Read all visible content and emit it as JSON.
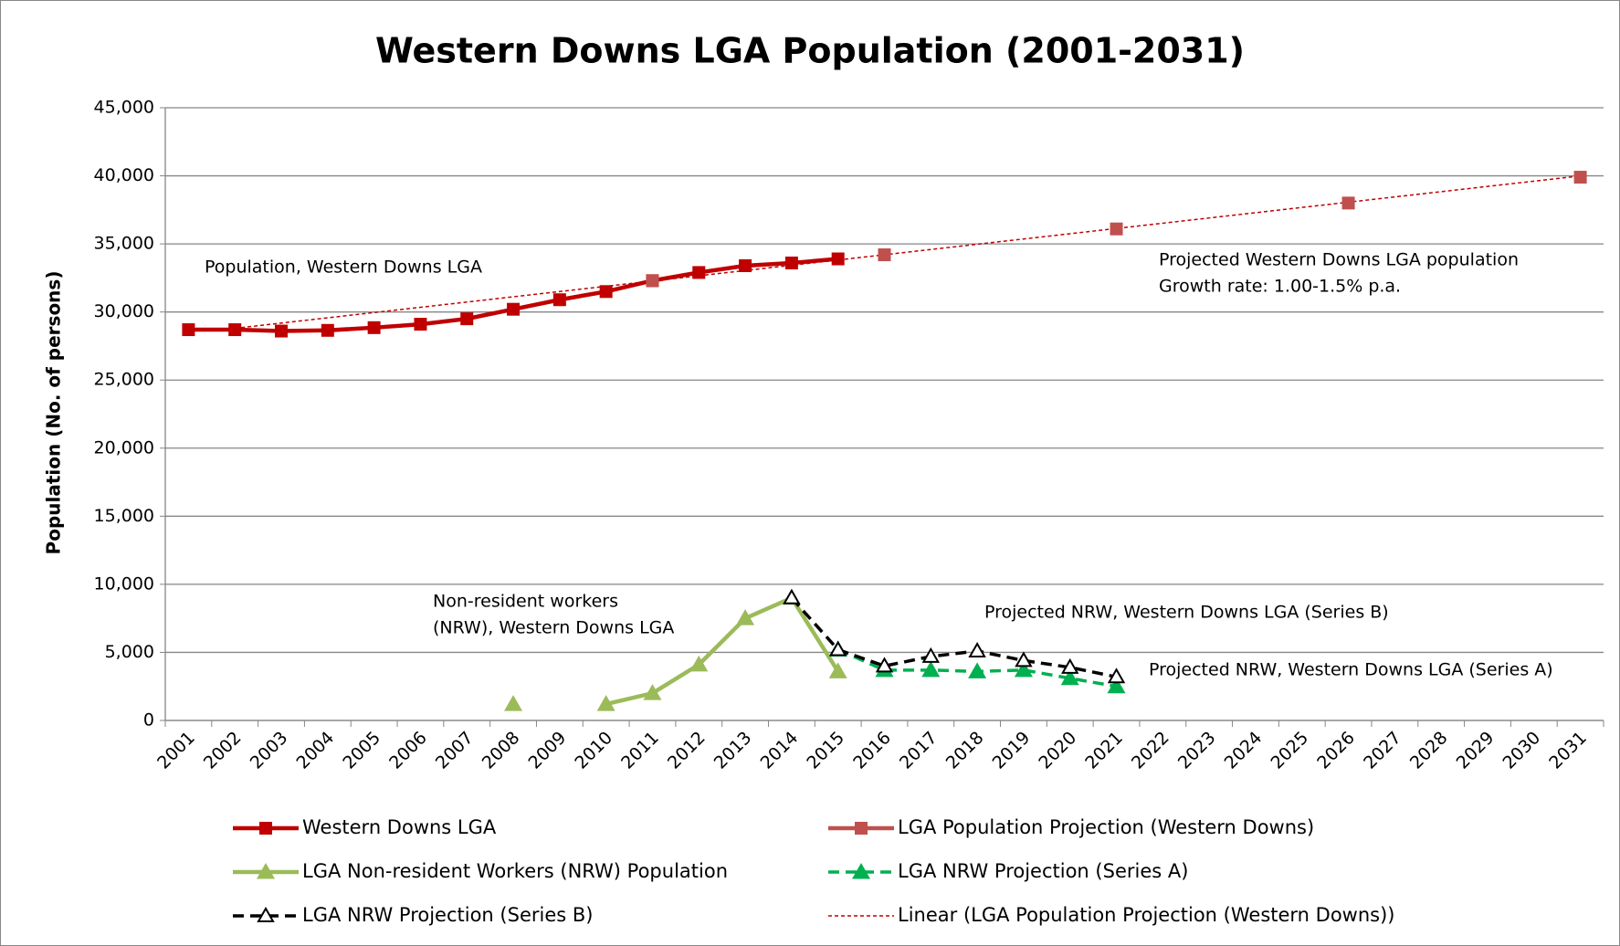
{
  "chart_data": {
    "type": "line",
    "title": "Western Downs LGA Population (2001-2031)",
    "y_label": "Population (No. of persons)",
    "categories": [
      "2001",
      "2002",
      "2003",
      "2004",
      "2005",
      "2006",
      "2007",
      "2008",
      "2009",
      "2010",
      "2011",
      "2012",
      "2013",
      "2014",
      "2015",
      "2016",
      "2017",
      "2018",
      "2019",
      "2020",
      "2021",
      "2022",
      "2023",
      "2024",
      "2025",
      "2026",
      "2027",
      "2028",
      "2029",
      "2030",
      "2031"
    ],
    "ylim": [
      0,
      45000
    ],
    "yticks": [
      0,
      {
        "value": 5000,
        "label": "5,000"
      },
      {
        "value": 10000,
        "label": "10,000"
      },
      {
        "value": 15000,
        "label": "15,000"
      },
      {
        "value": 20000,
        "label": "20,000"
      },
      {
        "value": 25000,
        "label": "25,000"
      },
      {
        "value": 30000,
        "label": "30,000"
      },
      {
        "value": 35000,
        "label": "35,000"
      },
      {
        "value": 40000,
        "label": "40,000"
      },
      {
        "value": 45000,
        "label": "45,000"
      }
    ],
    "grid": true,
    "series": [
      {
        "name": "Western Downs LGA",
        "color": "#c00000",
        "marker": "square",
        "line_style": "solid",
        "values": [
          28700,
          28700,
          28600,
          28650,
          28850,
          29100,
          29500,
          30200,
          30900,
          31500,
          32300,
          32900,
          33400,
          33600,
          33900,
          null,
          null,
          null,
          null,
          null,
          null,
          null,
          null,
          null,
          null,
          null,
          null,
          null,
          null,
          null,
          null
        ]
      },
      {
        "name": "LGA Population Projection (Western Downs)",
        "color": "#c0504d",
        "marker": "square",
        "line_style": "none",
        "values": [
          null,
          null,
          null,
          null,
          null,
          null,
          null,
          null,
          null,
          null,
          32300,
          null,
          null,
          null,
          null,
          34200,
          null,
          null,
          null,
          null,
          36100,
          null,
          null,
          null,
          null,
          38000,
          null,
          null,
          null,
          null,
          39900
        ]
      },
      {
        "name": "LGA Non-resident Workers (NRW) Population",
        "color": "#9bbb59",
        "marker": "triangle",
        "line_style": "solid",
        "values": [
          null,
          null,
          null,
          null,
          null,
          null,
          null,
          1200,
          null,
          1200,
          2000,
          4100,
          7500,
          9000,
          3600,
          null,
          null,
          null,
          null,
          null,
          null,
          null,
          null,
          null,
          null,
          null,
          null,
          null,
          null,
          null,
          null
        ]
      },
      {
        "name": "LGA NRW Projection (Series A)",
        "color": "#00b050",
        "marker": "triangle",
        "line_style": "dashed",
        "values": [
          null,
          null,
          null,
          null,
          null,
          null,
          null,
          null,
          null,
          null,
          null,
          null,
          null,
          null,
          5200,
          3700,
          3700,
          3600,
          3700,
          3100,
          2500,
          null,
          null,
          null,
          null,
          null,
          null,
          null,
          null,
          null,
          null
        ]
      },
      {
        "name": "LGA NRW Projection (Series B)",
        "color": "#000000",
        "marker": "open-triangle",
        "line_style": "dashed",
        "values": [
          null,
          null,
          null,
          null,
          null,
          null,
          null,
          null,
          null,
          null,
          null,
          null,
          null,
          9000,
          5200,
          4000,
          4700,
          5100,
          4400,
          3900,
          3200,
          null,
          null,
          null,
          null,
          null,
          null,
          null,
          null,
          null,
          null
        ]
      },
      {
        "name": "Linear (LGA Population Projection (Western Downs))",
        "color": "#c00000",
        "marker": "none",
        "line_style": "dotted",
        "values": [
          null,
          28800,
          29186,
          29572,
          29958,
          30344,
          30730,
          31116,
          31502,
          31888,
          32274,
          32660,
          33046,
          33432,
          33818,
          34204,
          34590,
          34976,
          35362,
          35748,
          36134,
          36520,
          36906,
          37292,
          37678,
          38064,
          38450,
          38836,
          39222,
          39608,
          39994
        ]
      }
    ],
    "annotations": [
      {
        "text": "Population, Western Downs LGA",
        "color": "#c00000"
      },
      {
        "text": "Projected Western Downs LGA population",
        "color": "#c00000"
      },
      {
        "text": "Growth rate: 1.00-1.5% p.a.",
        "color": "#c00000"
      },
      {
        "text": "Non-resident workers",
        "color": "#77933c"
      },
      {
        "text": "(NRW), Western Downs LGA",
        "color": "#77933c"
      },
      {
        "text": "Projected NRW, Western Downs LGA (Series B)",
        "color": "#000000"
      },
      {
        "text": "Projected NRW, Western Downs LGA (Series A)",
        "color": "#00b050"
      }
    ]
  }
}
